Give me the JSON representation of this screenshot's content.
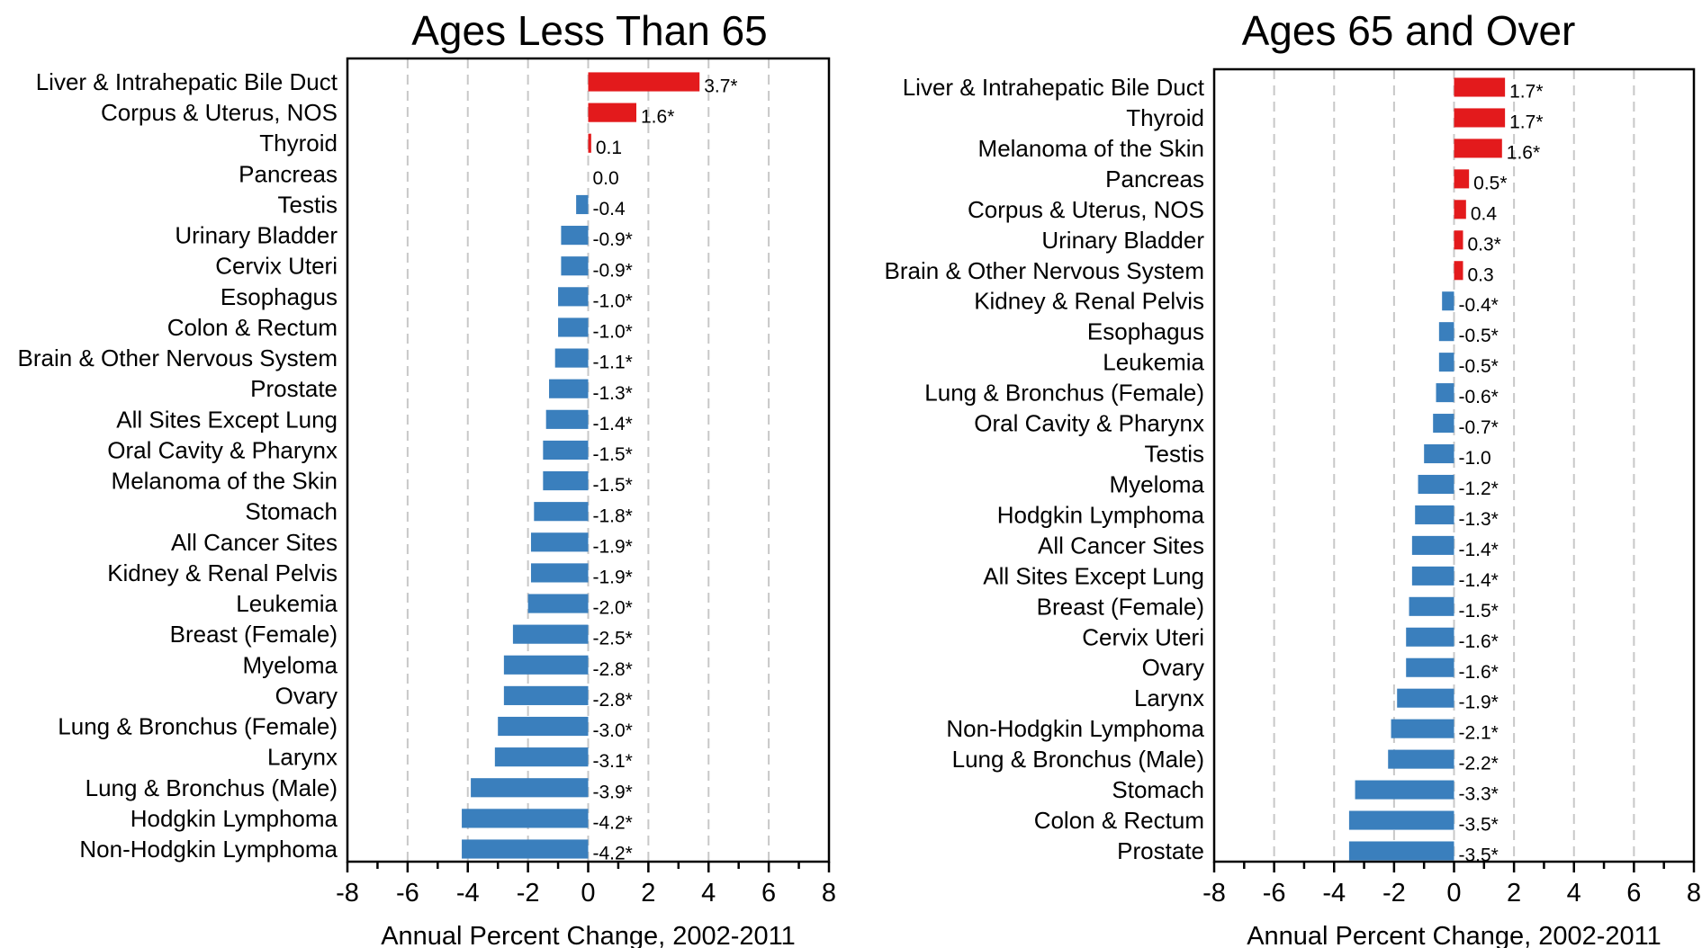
{
  "chart_data": [
    {
      "type": "bar",
      "orientation": "horizontal",
      "title": "Ages Less Than 65",
      "xlabel": "Annual Percent Change, 2002-2011",
      "ylabel": "",
      "xlim": [
        -8,
        8
      ],
      "xticks": [
        -8,
        -6,
        -4,
        -2,
        0,
        2,
        4,
        6,
        8
      ],
      "grid": "vertical dashed",
      "positive_color": "#e31a1c",
      "negative_color": "#3a7fbd",
      "categories": [
        "Liver & Intrahepatic Bile Duct",
        "Corpus & Uterus, NOS",
        "Thyroid",
        "Pancreas",
        "Testis",
        "Urinary Bladder",
        "Cervix Uteri",
        "Esophagus",
        "Colon & Rectum",
        "Brain & Other Nervous System",
        "Prostate",
        "All Sites Except Lung",
        "Oral Cavity & Pharynx",
        "Melanoma of the Skin",
        "Stomach",
        "All Cancer Sites",
        "Kidney & Renal Pelvis",
        "Leukemia",
        "Breast (Female)",
        "Myeloma",
        "Ovary",
        "Lung & Bronchus (Female)",
        "Larynx",
        "Lung & Bronchus (Male)",
        "Hodgkin Lymphoma",
        "Non-Hodgkin Lymphoma"
      ],
      "values": [
        3.7,
        1.6,
        0.1,
        0.0,
        -0.4,
        -0.9,
        -0.9,
        -1.0,
        -1.0,
        -1.1,
        -1.3,
        -1.4,
        -1.5,
        -1.5,
        -1.8,
        -1.9,
        -1.9,
        -2.0,
        -2.5,
        -2.8,
        -2.8,
        -3.0,
        -3.1,
        -3.9,
        -4.2,
        -4.2
      ],
      "value_labels": [
        "3.7*",
        "1.6*",
        "0.1",
        "0.0",
        "-0.4",
        "-0.9*",
        "-0.9*",
        "-1.0*",
        "-1.0*",
        "-1.1*",
        "-1.3*",
        "-1.4*",
        "-1.5*",
        "-1.5*",
        "-1.8*",
        "-1.9*",
        "-1.9*",
        "-2.0*",
        "-2.5*",
        "-2.8*",
        "-2.8*",
        "-3.0*",
        "-3.1*",
        "-3.9*",
        "-4.2*",
        "-4.2*"
      ]
    },
    {
      "type": "bar",
      "orientation": "horizontal",
      "title": "Ages 65 and Over",
      "xlabel": "Annual Percent Change, 2002-2011",
      "ylabel": "",
      "xlim": [
        -8,
        8
      ],
      "xticks": [
        -8,
        -6,
        -4,
        -2,
        0,
        2,
        4,
        6,
        8
      ],
      "grid": "vertical dashed",
      "positive_color": "#e31a1c",
      "negative_color": "#3a7fbd",
      "categories": [
        "Liver & Intrahepatic Bile Duct",
        "Thyroid",
        "Melanoma of the Skin",
        "Pancreas",
        "Corpus & Uterus, NOS",
        "Urinary Bladder",
        "Brain & Other Nervous System",
        "Kidney & Renal Pelvis",
        "Esophagus",
        "Leukemia",
        "Lung & Bronchus (Female)",
        "Oral Cavity & Pharynx",
        "Testis",
        "Myeloma",
        "Hodgkin Lymphoma",
        "All Cancer Sites",
        "All Sites Except Lung",
        "Breast (Female)",
        "Cervix Uteri",
        "Ovary",
        "Larynx",
        "Non-Hodgkin Lymphoma",
        "Lung & Bronchus (Male)",
        "Stomach",
        "Colon & Rectum",
        "Prostate"
      ],
      "values": [
        1.7,
        1.7,
        1.6,
        0.5,
        0.4,
        0.3,
        0.3,
        -0.4,
        -0.5,
        -0.5,
        -0.6,
        -0.7,
        -1.0,
        -1.2,
        -1.3,
        -1.4,
        -1.4,
        -1.5,
        -1.6,
        -1.6,
        -1.9,
        -2.1,
        -2.2,
        -3.3,
        -3.5,
        -3.5
      ],
      "value_labels": [
        "1.7*",
        "1.7*",
        "1.6*",
        "0.5*",
        "0.4",
        "0.3*",
        "0.3",
        "-0.4*",
        "-0.5*",
        "-0.5*",
        "-0.6*",
        "-0.7*",
        "-1.0",
        "-1.2*",
        "-1.3*",
        "-1.4*",
        "-1.4*",
        "-1.5*",
        "-1.6*",
        "-1.6*",
        "-1.9*",
        "-2.1*",
        "-2.2*",
        "-3.3*",
        "-3.5*",
        "-3.5*"
      ]
    }
  ]
}
